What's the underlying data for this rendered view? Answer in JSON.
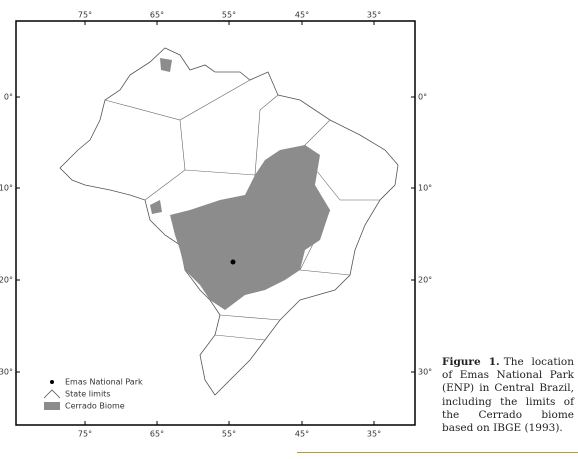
{
  "map": {
    "top_ticks": [
      "75°",
      "65°",
      "55°",
      "45°",
      "35°"
    ],
    "bottom_ticks": [
      "75°",
      "65°",
      "55°",
      "45°",
      "35°"
    ],
    "left_ticks": [
      "0°",
      "10°",
      "20°",
      "30°"
    ],
    "right_ticks": [
      "0°",
      "10°",
      "20°",
      "30°"
    ],
    "legend": [
      "Emas National Park",
      "State limits",
      "Cerrado Biome"
    ]
  },
  "caption": {
    "label": "Figure 1.",
    "text": "The location of Emas National Park (ENP) in Central Brazil, including the limits of the Cerrado biome based on IBGE (1993)."
  }
}
